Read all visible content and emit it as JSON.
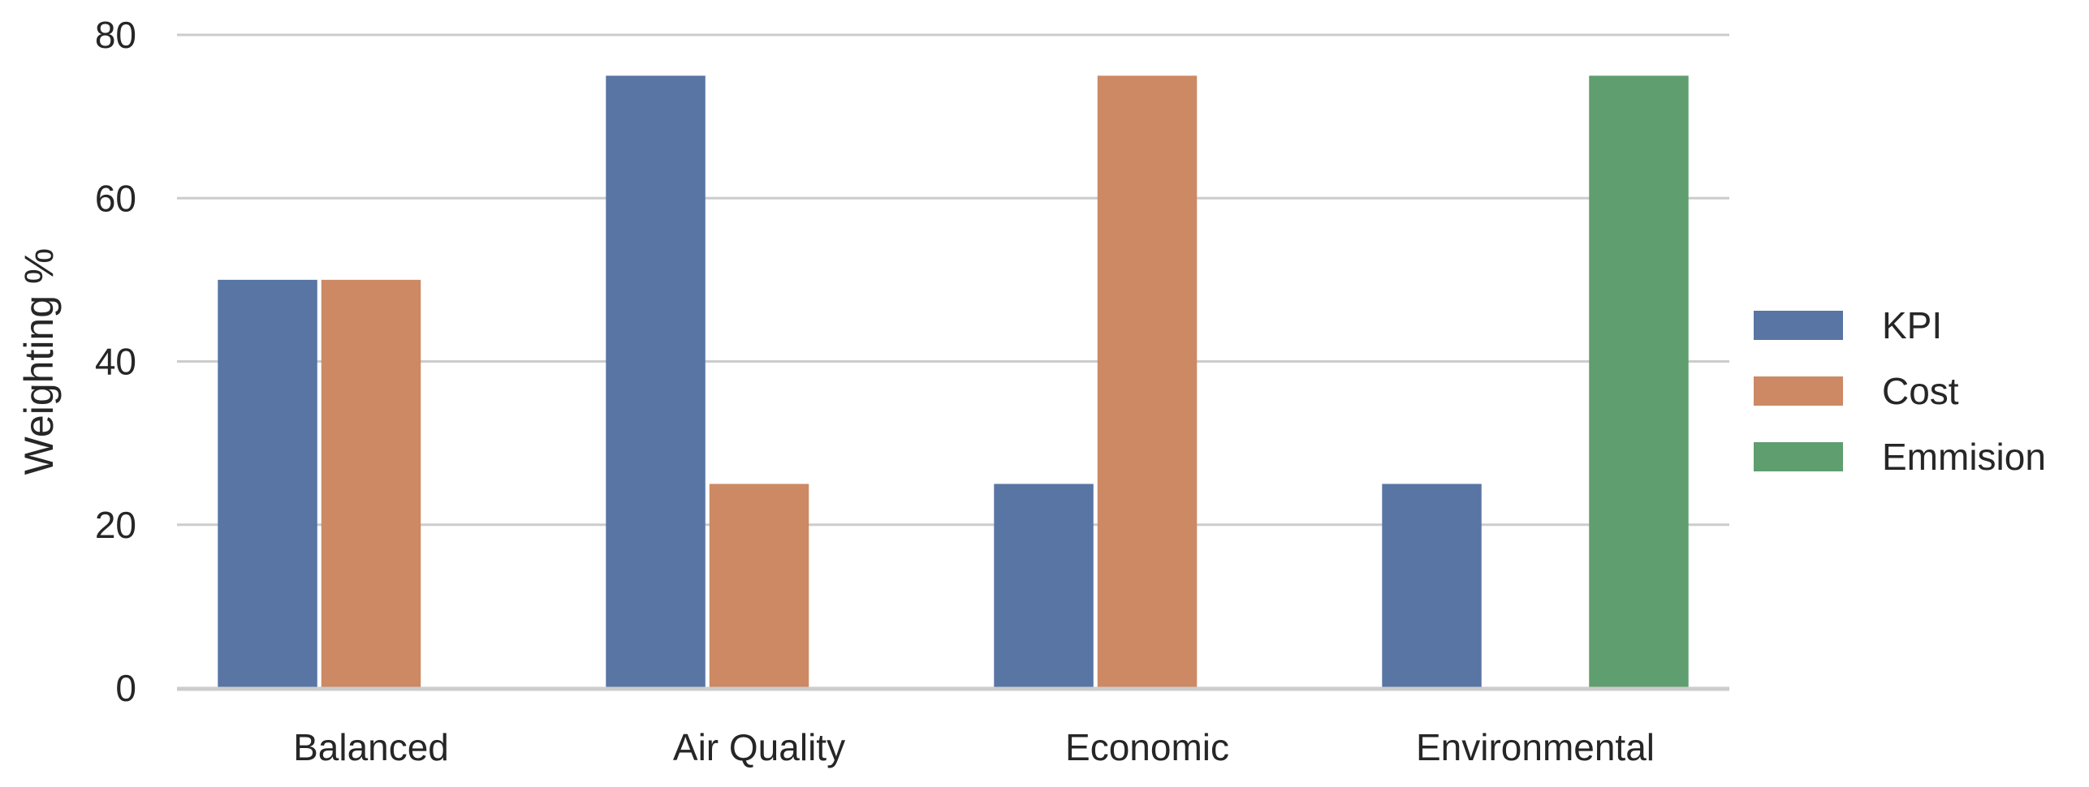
{
  "chart_data": {
    "type": "bar",
    "categories": [
      "Balanced",
      "Air Quality",
      "Economic",
      "Environmental"
    ],
    "series": [
      {
        "name": "KPI",
        "values": [
          50,
          75,
          25,
          25
        ],
        "color": "#5875a4"
      },
      {
        "name": "Cost",
        "values": [
          50,
          25,
          75,
          0
        ],
        "color": "#cc8963"
      },
      {
        "name": "Emmision",
        "values": [
          0,
          0,
          0,
          75
        ],
        "color": "#5f9e6e"
      }
    ],
    "title": "",
    "xlabel": "",
    "ylabel": "Weighting %",
    "ylim": [
      0,
      80
    ],
    "yticks": [
      0,
      20,
      40,
      60,
      80
    ],
    "grid": true,
    "legend_position": "right"
  }
}
